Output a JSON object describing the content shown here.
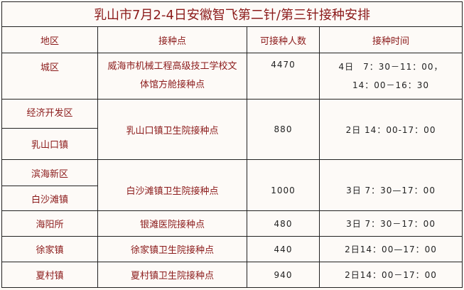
{
  "title": "乳山市7月2-4日安徽智飞第二针/第三针接种安排",
  "headers": [
    "地区",
    "接种点",
    "可接种人数",
    "接种时间"
  ],
  "rows": [
    {
      "regions": [
        "城区"
      ],
      "site_lines": [
        "威海市机械工程高级技工学校文",
        "体馆方舱接种点"
      ],
      "count": "4470",
      "time_lines": [
        "4日　7：30－11：00，",
        "14：00－16：30"
      ]
    },
    {
      "regions": [
        "经济开发区",
        "乳山口镇"
      ],
      "site": "乳山口镇卫生院接种点",
      "count": "880",
      "time": "2日 14：00-17：00"
    },
    {
      "regions": [
        "滨海新区",
        "白沙滩镇"
      ],
      "site": "白沙滩镇卫生院接种点",
      "count": "1000",
      "time": "3日 7：30—17：00"
    },
    {
      "regions": [
        "海阳所"
      ],
      "site": "银滩医院接种点",
      "count": "480",
      "time": "3日 7：30－17：00"
    },
    {
      "regions": [
        "徐家镇"
      ],
      "site": "徐家镇卫生院接种点",
      "count": "440",
      "time": "2日14：00—17：00"
    },
    {
      "regions": [
        "夏村镇"
      ],
      "site": "夏村镇卫生院接种点",
      "count": "940",
      "time": "2日14：00－17：00"
    }
  ]
}
